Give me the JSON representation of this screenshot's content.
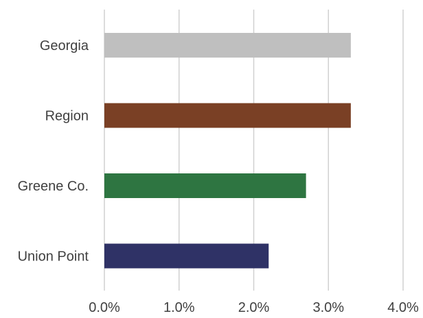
{
  "chart_data": {
    "type": "bar",
    "orientation": "horizontal",
    "categories": [
      "Georgia",
      "Region",
      "Greene Co.",
      "Union Point"
    ],
    "values": [
      3.3,
      3.3,
      2.7,
      2.2
    ],
    "value_unit": "%",
    "bar_colors": [
      "#bfbfbf",
      "#7a4025",
      "#2e7541",
      "#2f3266"
    ],
    "xlim": [
      0,
      4
    ],
    "x_ticks": [
      0,
      1,
      2,
      3,
      4
    ],
    "x_tick_labels": [
      "0.0%",
      "1.0%",
      "2.0%",
      "3.0%",
      "4.0%"
    ],
    "grid": "vertical",
    "legend": "none",
    "title": "",
    "xlabel": "",
    "ylabel": ""
  }
}
